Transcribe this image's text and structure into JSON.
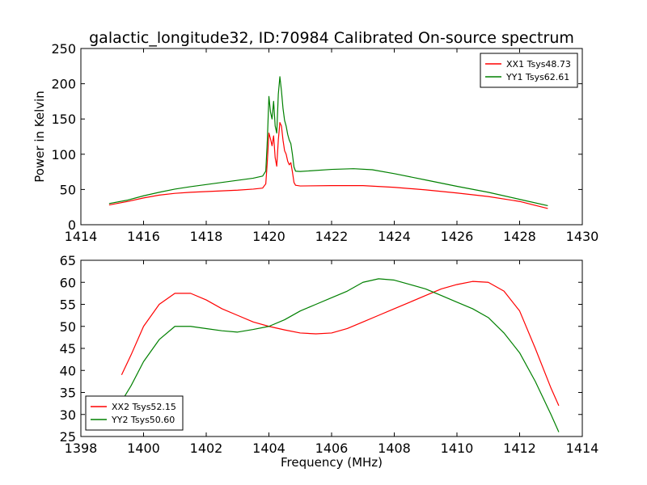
{
  "chart_data": [
    {
      "type": "line",
      "title": "galactic_longitude32, ID:70984 Calibrated On-source spectrum",
      "xlabel": "",
      "ylabel": "Power in Kelvin",
      "xlim": [
        1414,
        1430
      ],
      "ylim": [
        0,
        250
      ],
      "xticks": [
        "1414",
        "1416",
        "1418",
        "1420",
        "1422",
        "1424",
        "1426",
        "1428",
        "1430"
      ],
      "yticks": [
        "0",
        "50",
        "100",
        "150",
        "200",
        "250"
      ],
      "grid": false,
      "legend_position": "top-right",
      "series": [
        {
          "name": "XX1 Tsys48.73",
          "color": "#ff0000",
          "points": [
            [
              1414.9,
              28
            ],
            [
              1415.5,
              33
            ],
            [
              1416,
              38
            ],
            [
              1416.5,
              42
            ],
            [
              1417,
              44.5
            ],
            [
              1417.5,
              46
            ],
            [
              1418,
              47
            ],
            [
              1418.5,
              48
            ],
            [
              1419,
              49
            ],
            [
              1419.5,
              50.5
            ],
            [
              1419.8,
              52
            ],
            [
              1419.9,
              58
            ],
            [
              1419.95,
              90
            ],
            [
              1420.0,
              130
            ],
            [
              1420.05,
              122
            ],
            [
              1420.1,
              112
            ],
            [
              1420.15,
              126
            ],
            [
              1420.2,
              95
            ],
            [
              1420.25,
              83
            ],
            [
              1420.3,
              120
            ],
            [
              1420.35,
              145
            ],
            [
              1420.4,
              140
            ],
            [
              1420.45,
              120
            ],
            [
              1420.5,
              105
            ],
            [
              1420.55,
              100
            ],
            [
              1420.6,
              90
            ],
            [
              1420.65,
              85
            ],
            [
              1420.7,
              88
            ],
            [
              1420.75,
              75
            ],
            [
              1420.8,
              60
            ],
            [
              1420.85,
              56
            ],
            [
              1421,
              55
            ],
            [
              1422,
              55.5
            ],
            [
              1423,
              55.5
            ],
            [
              1424,
              53
            ],
            [
              1425,
              49.5
            ],
            [
              1426,
              45
            ],
            [
              1427,
              40
            ],
            [
              1428,
              33
            ],
            [
              1428.9,
              23
            ]
          ]
        },
        {
          "name": "YY1 Tsys62.61",
          "color": "#008000",
          "points": [
            [
              1414.9,
              30
            ],
            [
              1415.5,
              35
            ],
            [
              1416,
              41
            ],
            [
              1416.5,
              46
            ],
            [
              1417,
              50.5
            ],
            [
              1417.5,
              54
            ],
            [
              1418,
              57
            ],
            [
              1418.5,
              60
            ],
            [
              1419,
              63
            ],
            [
              1419.5,
              66
            ],
            [
              1419.8,
              69
            ],
            [
              1419.9,
              76
            ],
            [
              1419.95,
              120
            ],
            [
              1420.0,
              182
            ],
            [
              1420.05,
              160
            ],
            [
              1420.1,
              150
            ],
            [
              1420.15,
              175
            ],
            [
              1420.2,
              140
            ],
            [
              1420.25,
              130
            ],
            [
              1420.3,
              185
            ],
            [
              1420.35,
              210
            ],
            [
              1420.4,
              190
            ],
            [
              1420.45,
              165
            ],
            [
              1420.5,
              148
            ],
            [
              1420.55,
              140
            ],
            [
              1420.6,
              128
            ],
            [
              1420.65,
              120
            ],
            [
              1420.7,
              115
            ],
            [
              1420.75,
              100
            ],
            [
              1420.8,
              82
            ],
            [
              1420.85,
              76
            ],
            [
              1421,
              75.5
            ],
            [
              1422,
              78.5
            ],
            [
              1422.7,
              79.5
            ],
            [
              1423.3,
              78
            ],
            [
              1424,
              72.5
            ],
            [
              1425,
              63.5
            ],
            [
              1426,
              54.5
            ],
            [
              1427,
              46
            ],
            [
              1428,
              36
            ],
            [
              1428.9,
              27
            ]
          ]
        }
      ]
    },
    {
      "type": "line",
      "title": "",
      "xlabel": "Frequency (MHz)",
      "ylabel": "",
      "xlim": [
        1398,
        1414
      ],
      "ylim": [
        25,
        65
      ],
      "xticks": [
        "1398",
        "1400",
        "1402",
        "1404",
        "1406",
        "1408",
        "1410",
        "1412",
        "1414"
      ],
      "yticks": [
        "25",
        "30",
        "35",
        "40",
        "45",
        "50",
        "55",
        "60",
        "65"
      ],
      "grid": false,
      "legend_position": "bottom-left",
      "series": [
        {
          "name": "XX2 Tsys52.15",
          "color": "#ff0000",
          "points": [
            [
              1399.3,
              39
            ],
            [
              1399.6,
              43.5
            ],
            [
              1400,
              50
            ],
            [
              1400.5,
              55
            ],
            [
              1401,
              57.5
            ],
            [
              1401.5,
              57.5
            ],
            [
              1402,
              56
            ],
            [
              1402.5,
              54
            ],
            [
              1403,
              52.5
            ],
            [
              1403.5,
              51
            ],
            [
              1404,
              50
            ],
            [
              1404.5,
              49.2
            ],
            [
              1405,
              48.5
            ],
            [
              1405.5,
              48.3
            ],
            [
              1406,
              48.5
            ],
            [
              1406.5,
              49.5
            ],
            [
              1407,
              51
            ],
            [
              1407.5,
              52.5
            ],
            [
              1408,
              54
            ],
            [
              1408.5,
              55.5
            ],
            [
              1409,
              57
            ],
            [
              1409.5,
              58.5
            ],
            [
              1410,
              59.5
            ],
            [
              1410.5,
              60.2
            ],
            [
              1411,
              60
            ],
            [
              1411.5,
              58
            ],
            [
              1412,
              53.5
            ],
            [
              1412.5,
              45
            ],
            [
              1413,
              36
            ],
            [
              1413.25,
              32
            ]
          ]
        },
        {
          "name": "YY2 Tsys50.60",
          "color": "#008000",
          "points": [
            [
              1399.3,
              33
            ],
            [
              1399.6,
              36.5
            ],
            [
              1400,
              42
            ],
            [
              1400.5,
              47
            ],
            [
              1401,
              50
            ],
            [
              1401.5,
              50
            ],
            [
              1402,
              49.5
            ],
            [
              1402.5,
              49
            ],
            [
              1403,
              48.7
            ],
            [
              1403.5,
              49.3
            ],
            [
              1404,
              50
            ],
            [
              1404.5,
              51.5
            ],
            [
              1405,
              53.5
            ],
            [
              1405.5,
              55
            ],
            [
              1406,
              56.5
            ],
            [
              1406.5,
              58
            ],
            [
              1407,
              60
            ],
            [
              1407.5,
              60.8
            ],
            [
              1408,
              60.5
            ],
            [
              1408.5,
              59.5
            ],
            [
              1409,
              58.5
            ],
            [
              1409.5,
              57
            ],
            [
              1410,
              55.5
            ],
            [
              1410.5,
              54
            ],
            [
              1411,
              52
            ],
            [
              1411.5,
              48.5
            ],
            [
              1412,
              44
            ],
            [
              1412.5,
              37.5
            ],
            [
              1413,
              30
            ],
            [
              1413.25,
              26
            ]
          ]
        }
      ]
    }
  ]
}
